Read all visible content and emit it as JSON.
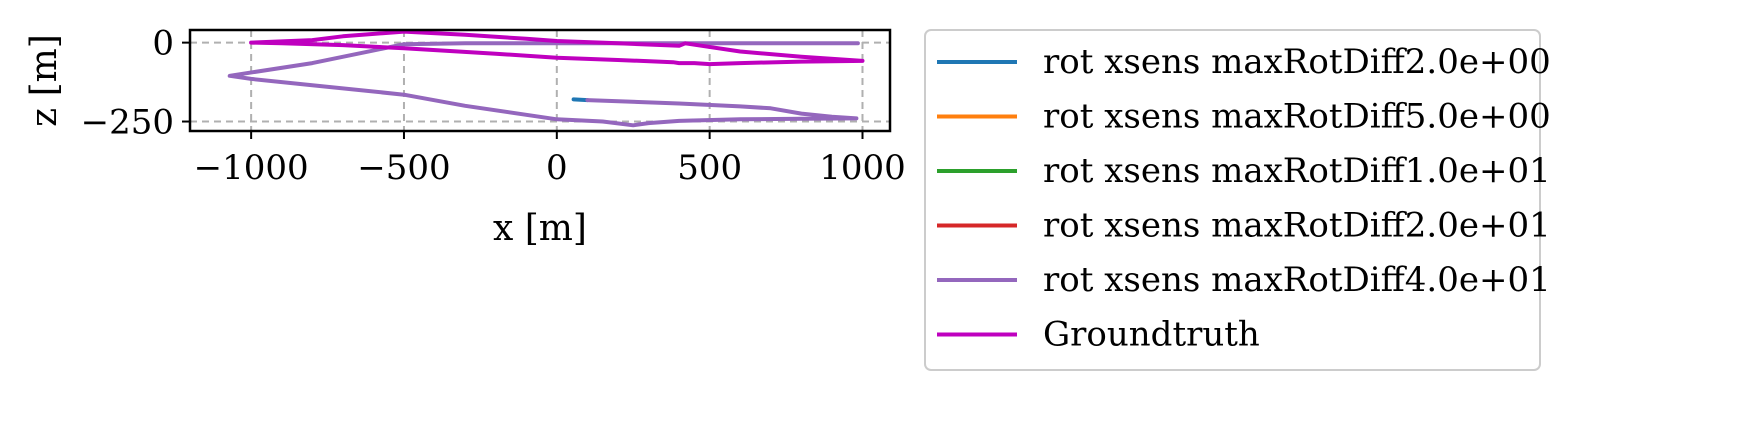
{
  "chart_data": {
    "type": "line",
    "title": "",
    "xlabel": "x [m]",
    "ylabel": "z [m]",
    "xlim": [
      -1200,
      1090
    ],
    "ylim": [
      -280,
      40
    ],
    "xticks": [
      -1000,
      -500,
      0,
      500,
      1000
    ],
    "xtick_labels": [
      "−1000",
      "−500",
      "0",
      "500",
      "1000"
    ],
    "yticks": [
      0,
      -250
    ],
    "ytick_labels": [
      "0",
      "−250"
    ],
    "grid": true,
    "legend_position": "right, outside plot",
    "series": [
      {
        "name": "rot xsens maxRotDiff2.0e+00",
        "color": "#1f77b4",
        "x": [
          55,
          100
        ],
        "y": [
          -180,
          -182
        ]
      },
      {
        "name": "rot xsens maxRotDiff5.0e+00",
        "color": "#ff7f0e",
        "x": [],
        "y": []
      },
      {
        "name": "rot xsens maxRotDiff1.0e+01",
        "color": "#2ca02c",
        "x": [],
        "y": []
      },
      {
        "name": "rot xsens maxRotDiff2.0e+01",
        "color": "#d62728",
        "x": [],
        "y": []
      },
      {
        "name": "rot xsens maxRotDiff4.0e+01",
        "color": "#9467bd",
        "x": [
          100,
          400,
          600,
          700,
          800,
          900,
          980,
          800,
          600,
          400,
          300,
          250,
          150,
          0,
          -300,
          -500,
          -800,
          -1000,
          -1070,
          -800,
          -500,
          -300,
          -100,
          0,
          100,
          200,
          300,
          400,
          500,
          600,
          700,
          800,
          900,
          985
        ],
        "y": [
          -182,
          -193,
          -202,
          -208,
          -225,
          -235,
          -240,
          -241,
          -243,
          -248,
          -255,
          -262,
          -250,
          -243,
          -200,
          -165,
          -135,
          -115,
          -105,
          -65,
          -5,
          -2,
          -2,
          -2,
          -2,
          -2,
          -2,
          -2,
          -2,
          -2,
          -2,
          -2,
          -2,
          -2
        ]
      },
      {
        "name": "Groundtruth",
        "color": "#bf00bf",
        "x": [
          -1000,
          -800,
          -700,
          -500,
          -300,
          -100,
          0,
          200,
          400,
          420,
          600,
          800,
          1000,
          800,
          600,
          500,
          450,
          400,
          380,
          200,
          0,
          -200,
          -500,
          -700,
          -900,
          -1000
        ],
        "y": [
          0,
          8,
          20,
          35,
          25,
          12,
          5,
          -2,
          -10,
          -2,
          -28,
          -45,
          -58,
          -60,
          -65,
          -68,
          -65,
          -65,
          -62,
          -55,
          -48,
          -35,
          -18,
          -8,
          -2,
          0
        ]
      }
    ]
  }
}
